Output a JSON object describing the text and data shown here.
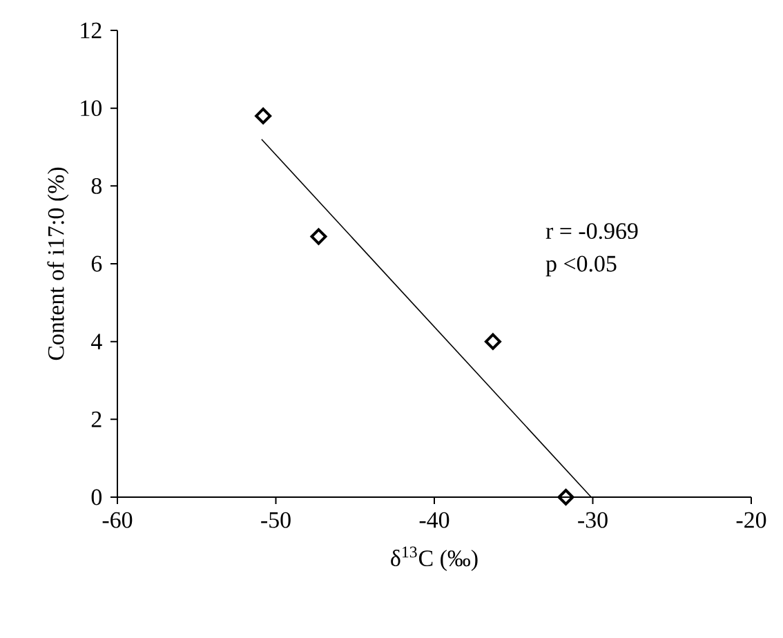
{
  "chart_data": {
    "type": "scatter",
    "xlabel": "δ$^{13}$C  (‰)",
    "ylabel": "Content of i17:0 (%)",
    "annotations": [
      "r = -0.969",
      "p <0.05"
    ],
    "xlim": [
      -60,
      -20
    ],
    "ylim": [
      0,
      12
    ],
    "xticks": [
      -60,
      -50,
      -40,
      -30,
      -20
    ],
    "yticks": [
      0,
      2,
      4,
      6,
      8,
      10,
      12
    ],
    "series": [
      {
        "marker": "diamond",
        "color": "#000000",
        "x": [
          -50.8,
          -47.3,
          -36.3,
          -31.7
        ],
        "values": [
          9.8,
          6.7,
          4.0,
          0
        ]
      },
      {
        "type": "line",
        "marker": "none",
        "color": "#000000",
        "x": [
          -50.9,
          -30.1
        ],
        "values": [
          9.2,
          0
        ]
      }
    ]
  }
}
